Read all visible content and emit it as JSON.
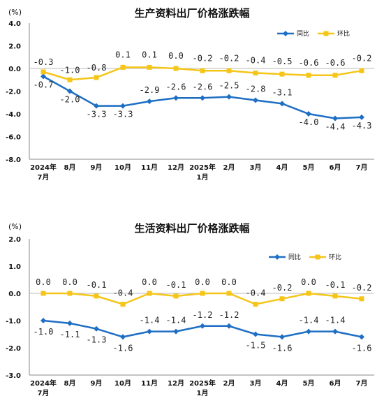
{
  "chart_data": [
    {
      "type": "line",
      "title": "生产资料出厂价格涨跌幅",
      "unit": "(%)",
      "categories": [
        [
          "2024年",
          "7月"
        ],
        [
          "8月"
        ],
        [
          "9月"
        ],
        [
          "10月"
        ],
        [
          "11月"
        ],
        [
          "12月"
        ],
        [
          "2025年",
          "1月"
        ],
        [
          "2月"
        ],
        [
          "3月"
        ],
        [
          "4月"
        ],
        [
          "5月"
        ],
        [
          "6月"
        ],
        [
          "7月"
        ]
      ],
      "ylim": [
        -8.0,
        4.0
      ],
      "yticks": [
        "4.0",
        "2.0",
        "0.0",
        "-2.0",
        "-4.0",
        "-6.0",
        "-8.0"
      ],
      "grid": false,
      "legend": "top-right",
      "series": [
        {
          "name": "同比",
          "color": "#1e6fc4",
          "values": [
            -0.7,
            -2.0,
            -3.3,
            -3.3,
            -2.9,
            -2.6,
            -2.6,
            -2.5,
            -2.8,
            -3.1,
            -4.0,
            -4.4,
            -4.3
          ],
          "labels": [
            "-0.7",
            "-2.0",
            "-3.3",
            "-3.3",
            "-2.9",
            "-2.6",
            "-2.6",
            "-2.5",
            "-2.8",
            "-3.1",
            "-4.0",
            "-4.4",
            "-4.3"
          ]
        },
        {
          "name": "环比",
          "color": "#f5c518",
          "values": [
            -0.3,
            -1.0,
            -0.8,
            0.1,
            0.1,
            0.0,
            -0.2,
            -0.2,
            -0.4,
            -0.5,
            -0.6,
            -0.6,
            -0.2
          ],
          "labels": [
            "-0.3",
            "-1.0",
            "-0.8",
            "0.1",
            "0.1",
            "0.0",
            "-0.2",
            "-0.2",
            "-0.4",
            "-0.5",
            "-0.6",
            "-0.6",
            "-0.2"
          ]
        }
      ]
    },
    {
      "type": "line",
      "title": "生活资料出厂价格涨跌幅",
      "unit": "(%)",
      "categories": [
        [
          "2024年",
          "7月"
        ],
        [
          "8月"
        ],
        [
          "9月"
        ],
        [
          "10月"
        ],
        [
          "11月"
        ],
        [
          "12月"
        ],
        [
          "2025年",
          "1月"
        ],
        [
          "2月"
        ],
        [
          "3月"
        ],
        [
          "4月"
        ],
        [
          "5月"
        ],
        [
          "6月"
        ],
        [
          "7月"
        ]
      ],
      "ylim": [
        -3.0,
        2.0
      ],
      "yticks": [
        "2.0",
        "1.0",
        "0.0",
        "-1.0",
        "-2.0",
        "-3.0"
      ],
      "grid": false,
      "legend": "top-right",
      "series": [
        {
          "name": "同比",
          "color": "#1e6fc4",
          "values": [
            -1.0,
            -1.1,
            -1.3,
            -1.6,
            -1.4,
            -1.4,
            -1.2,
            -1.2,
            -1.5,
            -1.6,
            -1.4,
            -1.4,
            -1.6
          ],
          "labels": [
            "-1.0",
            "-1.1",
            "-1.3",
            "-1.6",
            "-1.4",
            "-1.4",
            "-1.2",
            "-1.2",
            "-1.5",
            "-1.6",
            "-1.4",
            "-1.4",
            "-1.6"
          ]
        },
        {
          "name": "环比",
          "color": "#f5c518",
          "values": [
            0.0,
            0.0,
            -0.1,
            -0.4,
            0.0,
            -0.1,
            0.0,
            0.0,
            -0.4,
            -0.2,
            0.0,
            -0.1,
            -0.2
          ],
          "labels": [
            "0.0",
            "0.0",
            "-0.1",
            "-0.4",
            "0.0",
            "-0.1",
            "0.0",
            "0.0",
            "-0.4",
            "-0.2",
            "0.0",
            "-0.1",
            "-0.2"
          ]
        }
      ]
    }
  ]
}
